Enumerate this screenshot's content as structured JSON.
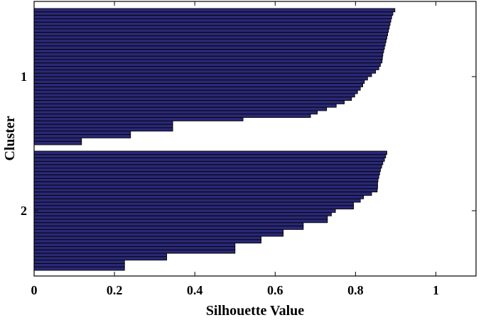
{
  "chart_data": {
    "type": "bar",
    "orientation": "horizontal",
    "title": "",
    "xlabel": "Silhouette Value",
    "ylabel": "Cluster",
    "xlim": [
      0,
      1.1
    ],
    "xticks": [
      "0",
      "0.2",
      "0.4",
      "0.6",
      "0.8",
      "1"
    ],
    "xtick_values": [
      0,
      0.2,
      0.4,
      0.6,
      0.8,
      1
    ],
    "yticks": [
      "1",
      "2"
    ],
    "grid": false,
    "bar_color": "#2a2877",
    "bar_edge_color": "#000000",
    "clusters": [
      {
        "label": "1",
        "values": [
          0.898,
          0.893,
          0.89,
          0.888,
          0.886,
          0.884,
          0.882,
          0.88,
          0.878,
          0.876,
          0.874,
          0.872,
          0.87,
          0.868,
          0.867,
          0.866,
          0.862,
          0.858,
          0.85,
          0.84,
          0.83,
          0.822,
          0.818,
          0.812,
          0.805,
          0.798,
          0.79,
          0.772,
          0.752,
          0.728,
          0.705,
          0.688,
          0.52,
          0.345,
          0.345,
          0.345,
          0.24,
          0.24,
          0.118,
          0.118
        ]
      },
      {
        "label": "2",
        "values": [
          0.878,
          0.875,
          0.872,
          0.868,
          0.865,
          0.862,
          0.86,
          0.858,
          0.856,
          0.855,
          0.855,
          0.854,
          0.84,
          0.82,
          0.812,
          0.795,
          0.795,
          0.75,
          0.74,
          0.73,
          0.73,
          0.67,
          0.67,
          0.62,
          0.62,
          0.565,
          0.565,
          0.5,
          0.5,
          0.5,
          0.33,
          0.33,
          0.225,
          0.225,
          0.225
        ]
      }
    ]
  }
}
